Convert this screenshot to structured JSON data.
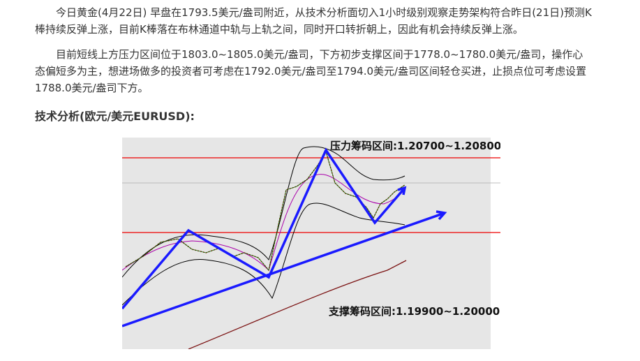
{
  "article": {
    "paragraphs": [
      "今日黄金(4月22日) 早盘在1793.5美元/盎司附近，从技术分析面切入1小时级别观察走势架构符合昨日(21日)预测K棒持续反弹上涨，目前K棒落在布林通道中轨与上轨之间，同时开口转折朝上，因此有机会持续反弹上涨。",
      "目前短线上方压力区间位于1803.0~1805.0美元/盎司，下方初步支撑区间于1778.0~1780.0美元/盎司，操作心态偏短多为主，想进场做多的投资者可考虑在1792.0美元/盎司至1794.0美元/盎司区间轻仓买进，止损点位可考虑设置1788.0美元/盎司下方。"
    ],
    "heading": "技术分析(欧元/美元EURUSD):",
    "figure": {
      "resistance_label": "压力筹码区间:1.20700~1.20800",
      "support_label": "支撑筹码区间:1.19900~1.20000"
    }
  }
}
